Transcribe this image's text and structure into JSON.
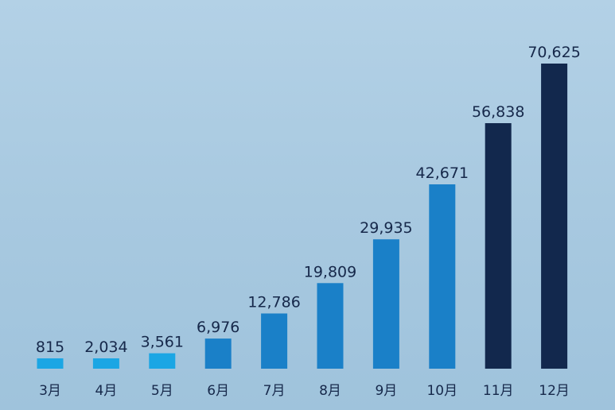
{
  "chart_data": {
    "type": "bar",
    "categories": [
      "3月",
      "4月",
      "5月",
      "6月",
      "7月",
      "8月",
      "9月",
      "10月",
      "11月",
      "12月"
    ],
    "values": [
      815,
      2034,
      3561,
      6976,
      12786,
      19809,
      29935,
      42671,
      56838,
      70625
    ],
    "value_labels": [
      "815",
      "2,034",
      "3,561",
      "6,976",
      "12,786",
      "19,809",
      "29,935",
      "42,671",
      "56,838",
      "70,625"
    ],
    "bar_colors": [
      "#1ba6e4",
      "#1ba6e4",
      "#1ba6e4",
      "#1a80c8",
      "#1a80c8",
      "#1a80c8",
      "#1a80c8",
      "#1a80c8",
      "#12284d",
      "#12284d"
    ],
    "ylim": [
      0,
      70625
    ],
    "grid": false,
    "legend": "none"
  }
}
